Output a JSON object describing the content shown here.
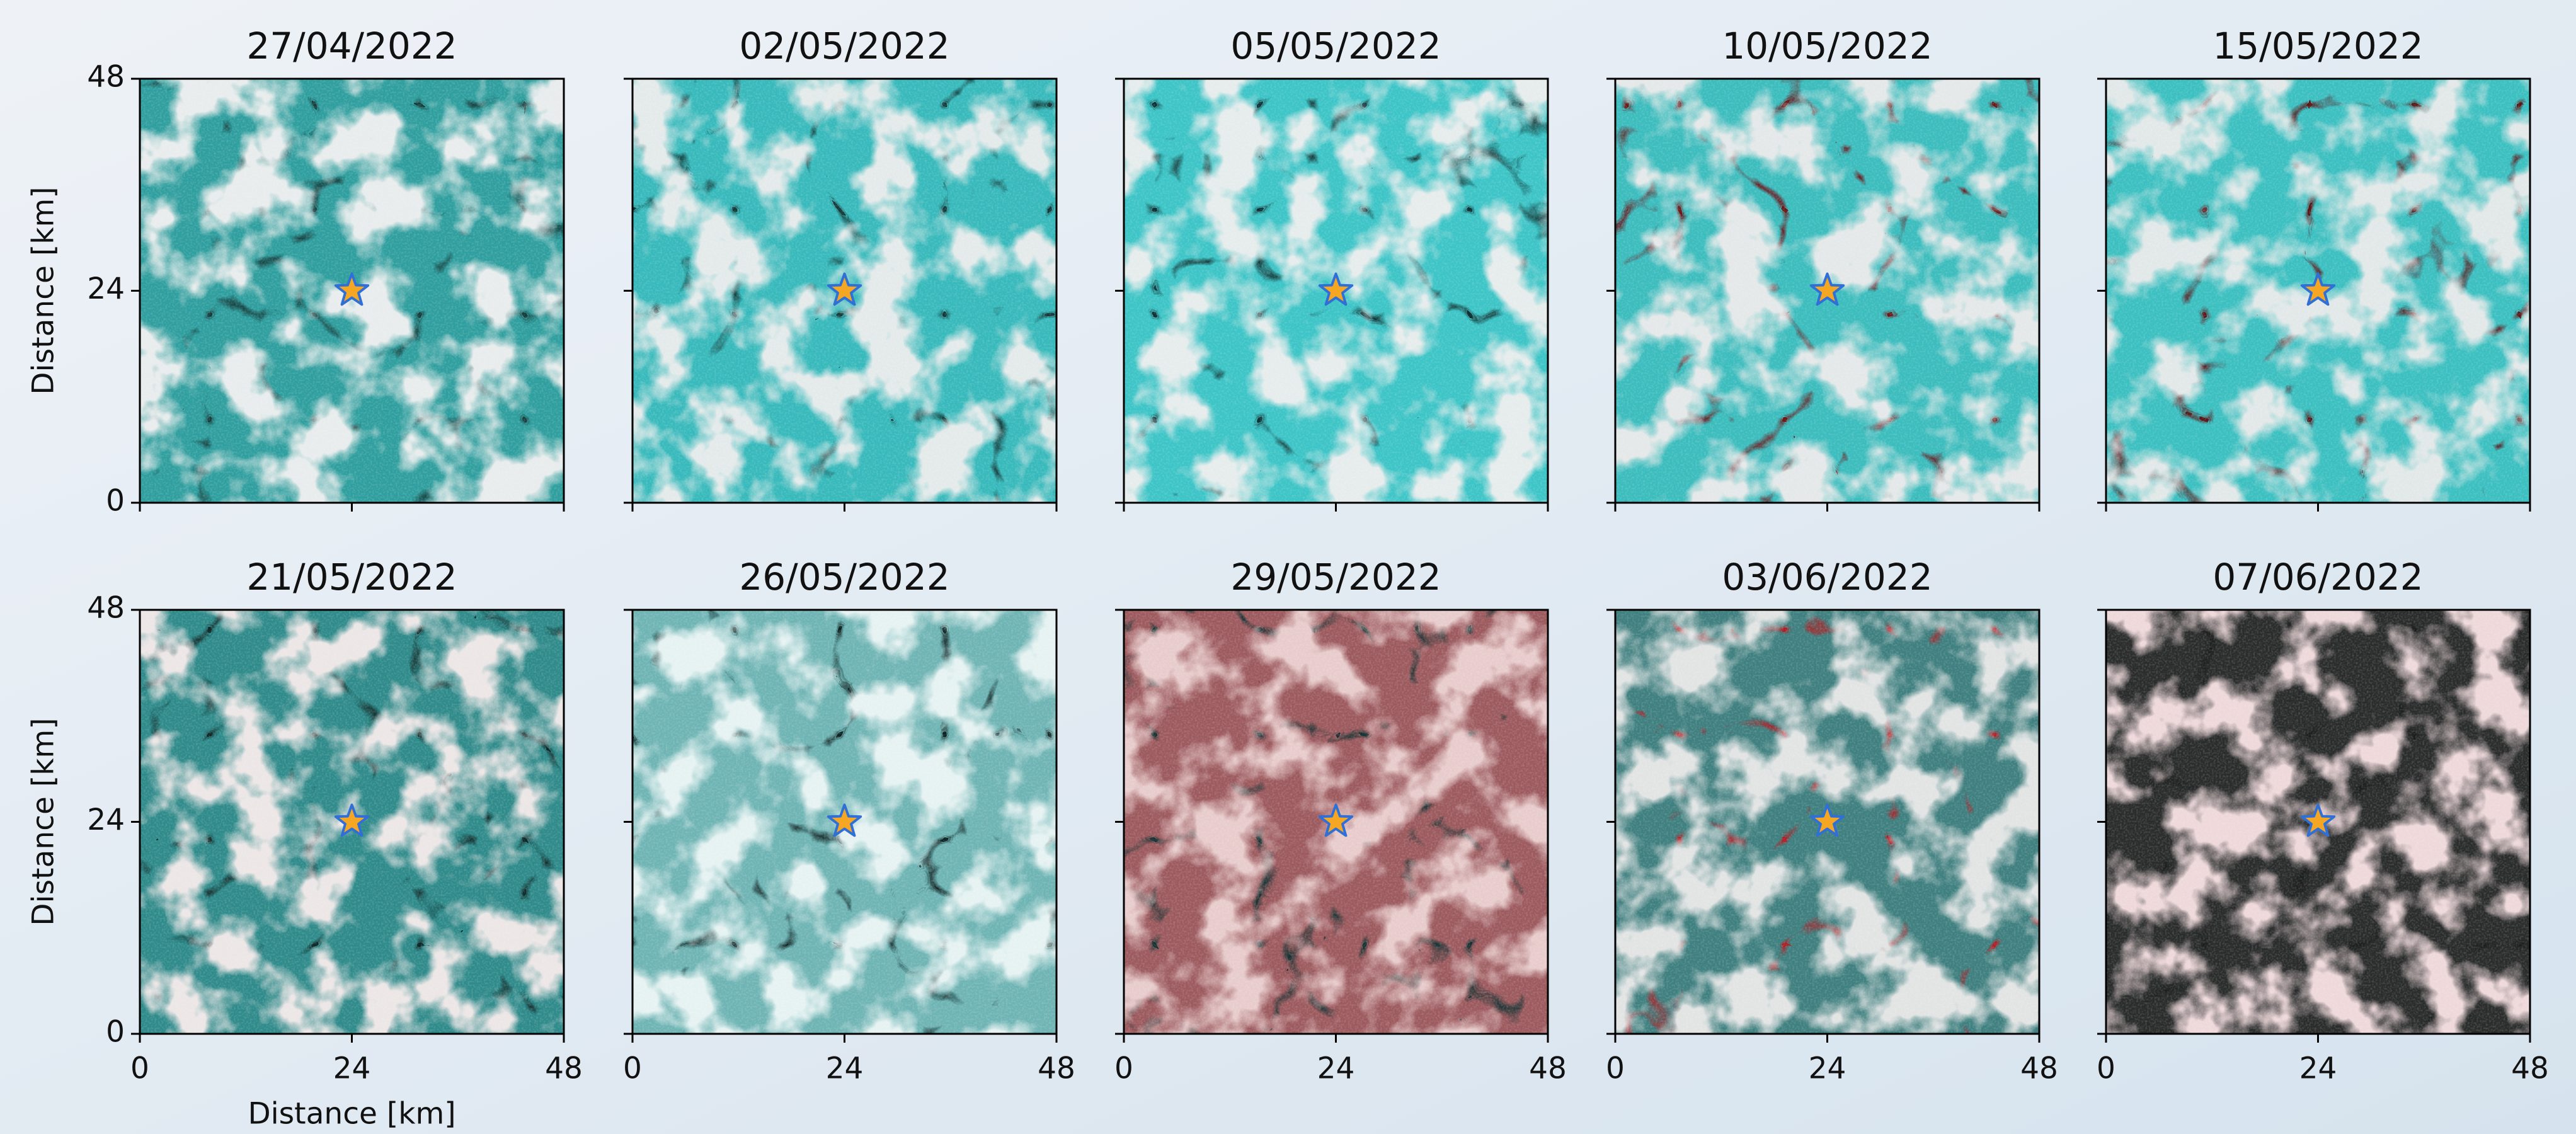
{
  "chart_data": [
    {
      "type": "scatter",
      "title": "27/04/2022",
      "ylabel": "Distance [km]",
      "xlim": [
        0,
        48
      ],
      "ylim": [
        0,
        48
      ],
      "xticks": [
        0,
        24,
        48
      ],
      "yticks": [
        0,
        24,
        48
      ],
      "xticklabels": false,
      "yticklabels": true,
      "x": [
        24
      ],
      "values": [
        24
      ],
      "color": "#f5a623"
    },
    {
      "type": "scatter",
      "title": "02/05/2022",
      "xlim": [
        0,
        48
      ],
      "ylim": [
        0,
        48
      ],
      "xticks": [
        0,
        24,
        48
      ],
      "yticks": [
        0,
        24,
        48
      ],
      "xticklabels": false,
      "yticklabels": false,
      "x": [
        24
      ],
      "values": [
        24
      ],
      "color": "#f5a623"
    },
    {
      "type": "scatter",
      "title": "05/05/2022",
      "xlim": [
        0,
        48
      ],
      "ylim": [
        0,
        48
      ],
      "xticks": [
        0,
        24,
        48
      ],
      "yticks": [
        0,
        24,
        48
      ],
      "xticklabels": false,
      "yticklabels": false,
      "x": [
        24
      ],
      "values": [
        24
      ],
      "color": "#f5a623"
    },
    {
      "type": "scatter",
      "title": "10/05/2022",
      "xlim": [
        0,
        48
      ],
      "ylim": [
        0,
        48
      ],
      "xticks": [
        0,
        24,
        48
      ],
      "yticks": [
        0,
        24,
        48
      ],
      "xticklabels": false,
      "yticklabels": false,
      "x": [
        24
      ],
      "values": [
        24
      ],
      "color": "#f5a623"
    },
    {
      "type": "scatter",
      "title": "15/05/2022",
      "xlim": [
        0,
        48
      ],
      "ylim": [
        0,
        48
      ],
      "xticks": [
        0,
        24,
        48
      ],
      "yticks": [
        0,
        24,
        48
      ],
      "xticklabels": false,
      "yticklabels": false,
      "x": [
        24
      ],
      "values": [
        24
      ],
      "color": "#f5a623"
    },
    {
      "type": "scatter",
      "title": "21/05/2022",
      "xlabel": "Distance [km]",
      "ylabel": "Distance [km]",
      "xlim": [
        0,
        48
      ],
      "ylim": [
        0,
        48
      ],
      "xticks": [
        0,
        24,
        48
      ],
      "yticks": [
        0,
        24,
        48
      ],
      "xticklabels": true,
      "yticklabels": true,
      "x": [
        24
      ],
      "values": [
        24
      ],
      "color": "#f5a623"
    },
    {
      "type": "scatter",
      "title": "26/05/2022",
      "xlim": [
        0,
        48
      ],
      "ylim": [
        0,
        48
      ],
      "xticks": [
        0,
        24,
        48
      ],
      "yticks": [
        0,
        24,
        48
      ],
      "xticklabels": true,
      "yticklabels": false,
      "x": [
        24
      ],
      "values": [
        24
      ],
      "color": "#f5a623"
    },
    {
      "type": "scatter",
      "title": "29/05/2022",
      "xlim": [
        0,
        48
      ],
      "ylim": [
        0,
        48
      ],
      "xticks": [
        0,
        24,
        48
      ],
      "yticks": [
        0,
        24,
        48
      ],
      "xticklabels": true,
      "yticklabels": false,
      "x": [
        24
      ],
      "values": [
        24
      ],
      "color": "#f5a623"
    },
    {
      "type": "scatter",
      "title": "03/06/2022",
      "xlim": [
        0,
        48
      ],
      "ylim": [
        0,
        48
      ],
      "xticks": [
        0,
        24,
        48
      ],
      "yticks": [
        0,
        24,
        48
      ],
      "xticklabels": true,
      "yticklabels": false,
      "x": [
        24
      ],
      "values": [
        24
      ],
      "color": "#f5a623"
    },
    {
      "type": "scatter",
      "title": "07/06/2022",
      "xlim": [
        0,
        48
      ],
      "ylim": [
        0,
        48
      ],
      "xticks": [
        0,
        24,
        48
      ],
      "yticks": [
        0,
        24,
        48
      ],
      "xticklabels": true,
      "yticklabels": false,
      "x": [
        24
      ],
      "values": [
        24
      ],
      "color": "#f5a623"
    }
  ]
}
